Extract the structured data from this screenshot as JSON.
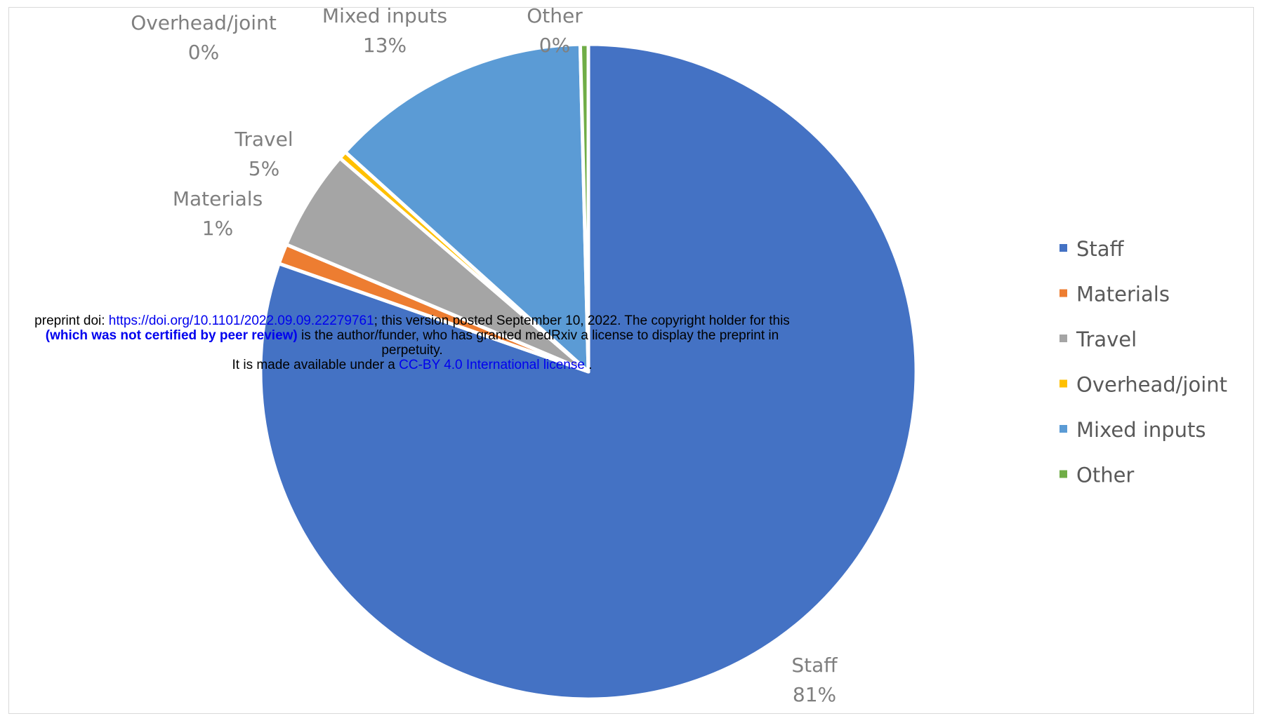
{
  "chart_data": {
    "type": "pie",
    "slices": [
      {
        "label": "Staff",
        "value": 81,
        "pct_label": "81%",
        "color": "#4472C4"
      },
      {
        "label": "Materials",
        "value": 1,
        "pct_label": "1%",
        "color": "#ED7D31"
      },
      {
        "label": "Travel",
        "value": 5,
        "pct_label": "5%",
        "color": "#A5A5A5"
      },
      {
        "label": "Overhead/joint",
        "value": 0.4,
        "pct_label": "0%",
        "color": "#FFC000"
      },
      {
        "label": "Mixed inputs",
        "value": 13,
        "pct_label": "13%",
        "color": "#5B9BD5"
      },
      {
        "label": "Other",
        "value": 0.4,
        "pct_label": "0%",
        "color": "#70AD47"
      }
    ],
    "legend": {
      "position": "right"
    }
  },
  "banner": {
    "line1_a": "preprint doi: ",
    "line1_link": "https://doi.org/10.1101/2022.09.09.22279761",
    "line1_b": "; this version posted September 10, 2022. The copyright holder for this",
    "line2_bold": "(which was not certified by peer review)",
    "line2_b": " is the author/funder, who has granted medRxiv a license to display the preprint in",
    "line3": "perpetuity.",
    "line4_a": "It is made available under a ",
    "line4_link": "CC-BY 4.0 International license",
    "line4_b": " ."
  }
}
